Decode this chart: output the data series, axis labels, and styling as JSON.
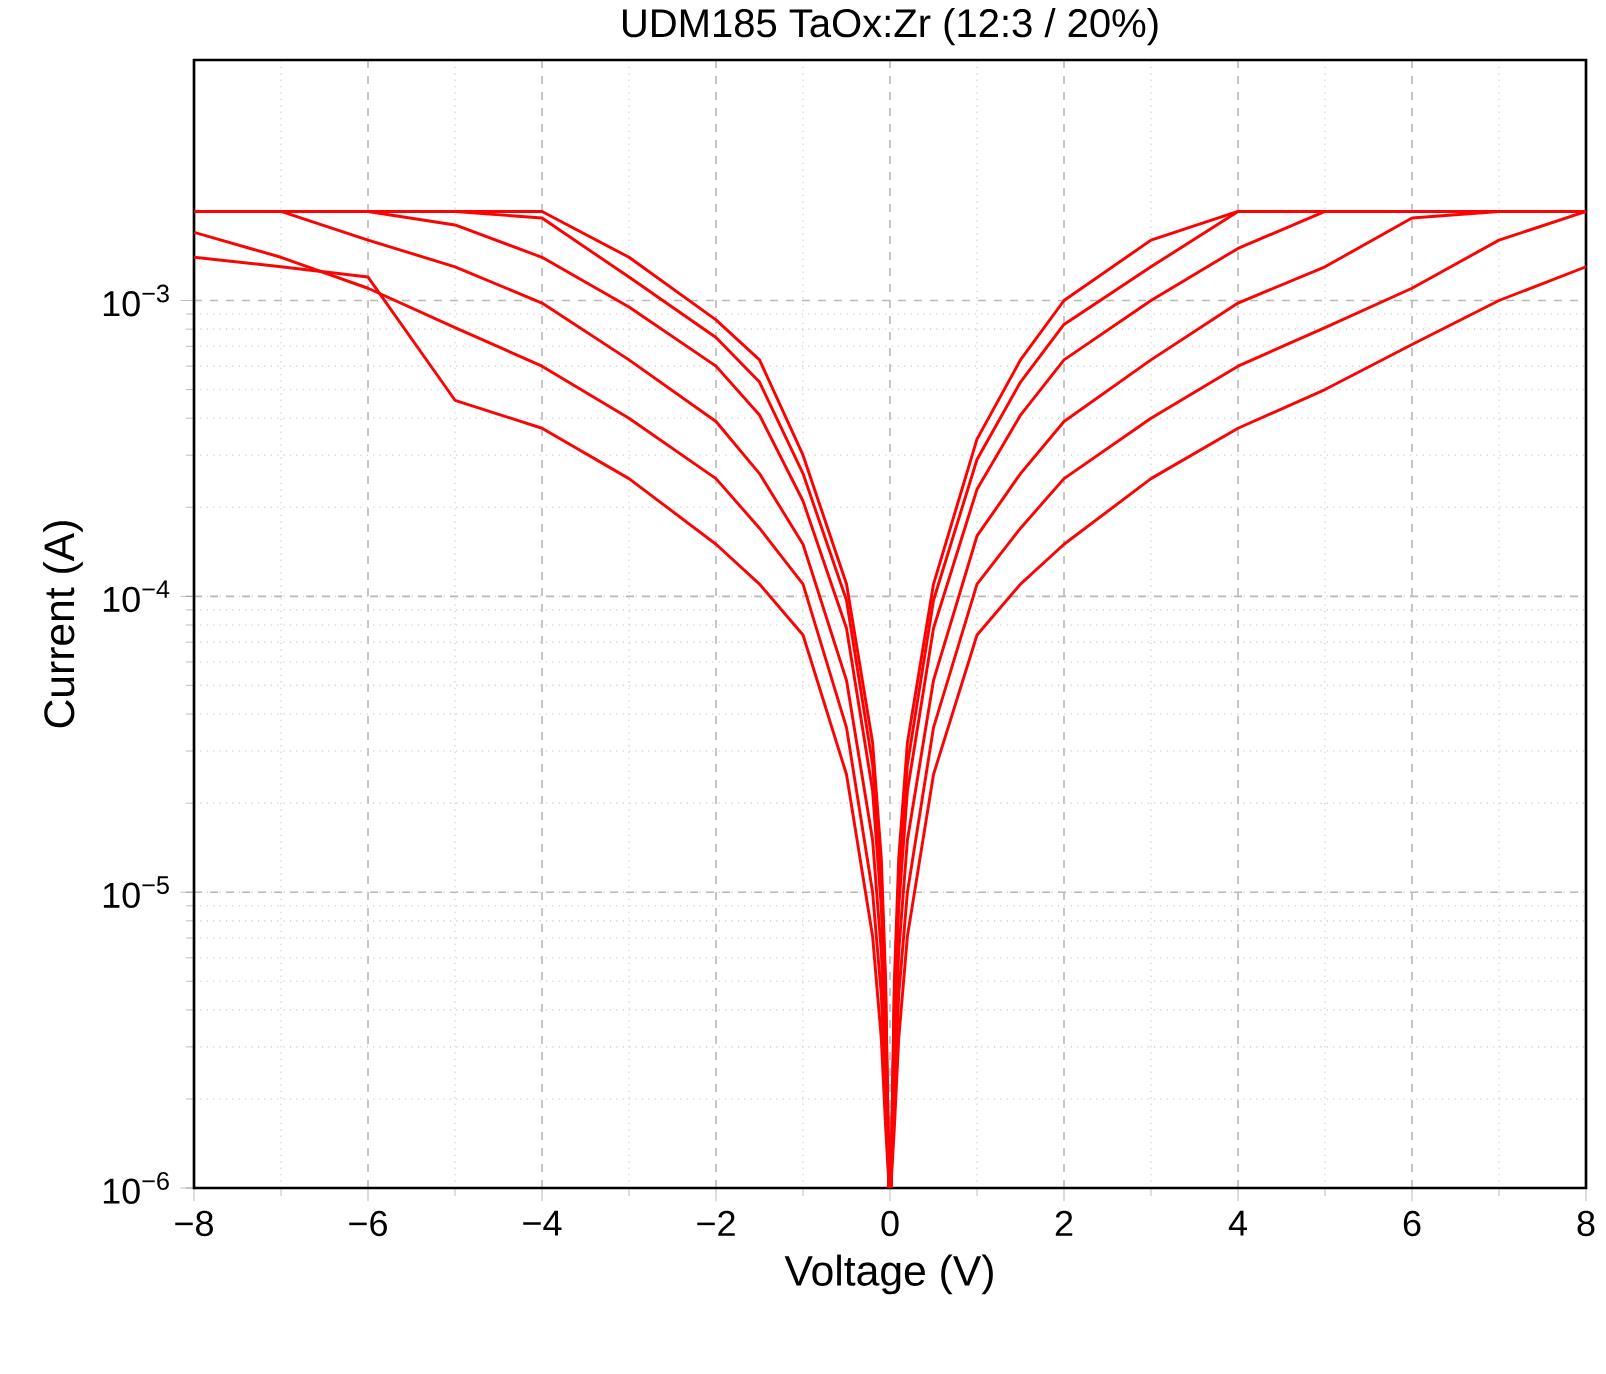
{
  "chart_data": {
    "type": "line",
    "title": "UDM185 TaOx:Zr (12:3 / 20%)",
    "xlabel": "Voltage (V)",
    "ylabel": "Current (A)",
    "log": "y",
    "grid": true,
    "marker": "none",
    "line_style": "solid",
    "xlim": [
      -8,
      8
    ],
    "ylim": [
      1e-06,
      0.0065
    ],
    "xticks": [
      {
        "value": -8,
        "label": "−8"
      },
      {
        "value": -6,
        "label": "−6"
      },
      {
        "value": -4,
        "label": "−4"
      },
      {
        "value": -2,
        "label": "−2"
      },
      0,
      2,
      4,
      6,
      8
    ],
    "yticks": [
      {
        "value": 1e-06,
        "label": "10$^{−6}$"
      },
      {
        "value": 1e-05,
        "label": "10$^{−5}$"
      },
      {
        "value": 0.0001,
        "label": "10$^{−4}$"
      },
      {
        "value": 0.001,
        "label": "10$^{−3}$"
      }
    ],
    "x": [
      -8,
      -7,
      -6,
      -5,
      -4,
      -3,
      -2,
      -1.5,
      -1,
      -0.5,
      -0.2,
      -0.1,
      -0.05,
      -0.01,
      0.01,
      0.05,
      0.1,
      0.2,
      0.5,
      1,
      1.5,
      2,
      3,
      4,
      5,
      6,
      7,
      8
    ],
    "series": [
      {
        "color": "#ff0000",
        "values": [
          0.002,
          0.002,
          0.002,
          0.002,
          0.002,
          0.0014,
          0.00086,
          0.00063,
          0.0003,
          0.00011,
          3.2e-05,
          1.3e-05,
          5e-06,
          1e-06,
          1e-06,
          5e-06,
          1.3e-05,
          3.2e-05,
          0.00011,
          0.00034,
          0.00063,
          0.001,
          0.0016,
          0.002,
          0.002,
          0.002,
          0.002,
          0.002
        ]
      },
      {
        "color": "#fe0101",
        "values": [
          0.002,
          0.002,
          0.002,
          0.002,
          0.0019,
          0.0012,
          0.00075,
          0.00053,
          0.00026,
          9.7e-05,
          2.7e-05,
          1.1e-05,
          4.5e-06,
          1e-06,
          1e-06,
          4.5e-06,
          1.1e-05,
          2.7e-05,
          9.7e-05,
          0.00029,
          0.00053,
          0.00083,
          0.0013,
          0.002,
          0.002,
          0.002,
          0.002,
          0.002
        ]
      },
      {
        "color": "#fd0202",
        "values": [
          0.002,
          0.002,
          0.002,
          0.0018,
          0.0014,
          0.00095,
          0.0006,
          0.00041,
          0.00021,
          7.8e-05,
          2.2e-05,
          8.9e-06,
          3.8e-06,
          1e-06,
          1e-06,
          3.8e-06,
          8.9e-06,
          2.2e-05,
          7.8e-05,
          0.00023,
          0.00041,
          0.00063,
          0.001,
          0.0015,
          0.002,
          0.002,
          0.002,
          0.002
        ]
      },
      {
        "color": "#fc0303",
        "values": [
          0.002,
          0.002,
          0.0016,
          0.0013,
          0.00098,
          0.00063,
          0.00039,
          0.00026,
          0.00015,
          5.2e-05,
          1.5e-05,
          6.3e-06,
          2.8e-06,
          1e-06,
          1e-06,
          2.8e-06,
          6.3e-06,
          1.5e-05,
          5.2e-05,
          0.00016,
          0.00026,
          0.00039,
          0.00063,
          0.00098,
          0.0013,
          0.0019,
          0.002,
          0.002
        ]
      },
      {
        "color": "#fb0404",
        "values": [
          0.0017,
          0.0014,
          0.0011,
          0.00081,
          0.0006,
          0.0004,
          0.00025,
          0.00017,
          0.00011,
          3.6e-05,
          1e-05,
          4.5e-06,
          2.1e-06,
          1e-06,
          1e-06,
          2.1e-06,
          4.5e-06,
          1e-05,
          3.6e-05,
          0.00011,
          0.00017,
          0.00025,
          0.0004,
          0.0006,
          0.00081,
          0.0011,
          0.0016,
          0.002
        ]
      },
      {
        "color": "#fa0505",
        "values": [
          0.0014,
          0.0013,
          0.0012,
          0.00046,
          0.00037,
          0.00025,
          0.00015,
          0.00011,
          7.4e-05,
          2.5e-05,
          7.1e-06,
          3.2e-06,
          1.6e-06,
          1e-06,
          1e-06,
          1.6e-06,
          3.2e-06,
          7.1e-06,
          2.5e-05,
          7.4e-05,
          0.00011,
          0.00015,
          0.00025,
          0.00037,
          0.0005,
          0.00071,
          0.001,
          0.0013
        ]
      }
    ]
  }
}
